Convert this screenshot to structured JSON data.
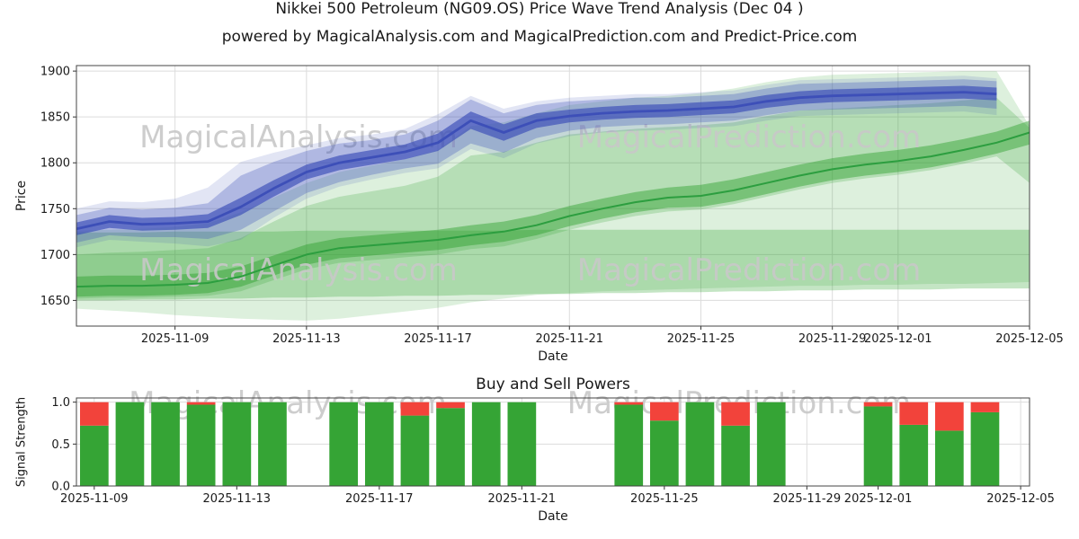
{
  "header": {
    "title_line1": "Nikkei 500 Petroleum (NG09.OS) Price Wave Trend Analysis (Dec 04 )",
    "title_line2": "powered by MagicalAnalysis.com and MagicalPrediction.com and Predict-Price.com"
  },
  "watermarks": {
    "analysis": "MagicalAnalysis.com",
    "prediction": "MagicalPrediction.com",
    "color": "#c8c8c8"
  },
  "chart_data": [
    {
      "type": "area",
      "name": "price-wave-trend",
      "xlabel": "Date",
      "ylabel": "Price",
      "xmin": "2025-11-06",
      "xmax": "2025-12-05",
      "ylim": [
        1622,
        1906
      ],
      "y_ticks": [
        1650,
        1700,
        1750,
        1800,
        1850,
        1900
      ],
      "y_tick_labels": [
        "1650",
        "1700",
        "1750",
        "1800",
        "1850",
        "1900"
      ],
      "x_ticks": [
        "2025-11-09",
        "2025-11-13",
        "2025-11-17",
        "2025-11-21",
        "2025-11-25",
        "2025-11-29",
        "2025-12-01",
        "2025-12-05"
      ],
      "grid": true,
      "legend": "none",
      "dates": [
        "2025-11-06",
        "2025-11-07",
        "2025-11-08",
        "2025-11-09",
        "2025-11-10",
        "2025-11-11",
        "2025-11-12",
        "2025-11-13",
        "2025-11-14",
        "2025-11-15",
        "2025-11-16",
        "2025-11-17",
        "2025-11-18",
        "2025-11-19",
        "2025-11-20",
        "2025-11-21",
        "2025-11-22",
        "2025-11-23",
        "2025-11-24",
        "2025-11-25",
        "2025-11-26",
        "2025-11-27",
        "2025-11-28",
        "2025-11-29",
        "2025-11-30",
        "2025-12-01",
        "2025-12-02",
        "2025-12-03",
        "2025-12-04",
        "2025-12-05"
      ],
      "bands_back": [
        {
          "name": "outer-green-fan",
          "color": "#2ca02c",
          "opacity": 0.16,
          "upper": [
            1726,
            1727,
            1728,
            1730,
            1734,
            1746,
            1762,
            1778,
            1790,
            1797,
            1804,
            1814,
            1840,
            1844,
            1854,
            1863,
            1867,
            1871,
            1873,
            1876,
            1881,
            1888,
            1893,
            1896,
            1897,
            1898,
            1899,
            1900,
            1900,
            1840
          ],
          "lower": [
            1641,
            1639,
            1637,
            1634,
            1632,
            1630,
            1629,
            1628,
            1630,
            1634,
            1638,
            1642,
            1648,
            1652,
            1656,
            1658,
            1660,
            1661,
            1662,
            1663,
            1664,
            1665,
            1666,
            1666,
            1667,
            1667,
            1668,
            1668,
            1669,
            1670
          ]
        },
        {
          "name": "flat-green-band",
          "color": "#2ca02c",
          "opacity": 0.28,
          "upper": [
            1724,
            1724,
            1724,
            1725,
            1725,
            1725,
            1725,
            1726,
            1726,
            1726,
            1726,
            1726,
            1726,
            1726,
            1727,
            1727,
            1727,
            1727,
            1727,
            1727,
            1727,
            1727,
            1727,
            1727,
            1727,
            1727,
            1727,
            1727,
            1727,
            1727
          ],
          "lower": [
            1650,
            1650,
            1651,
            1651,
            1652,
            1652,
            1653,
            1653,
            1654,
            1654,
            1655,
            1655,
            1656,
            1656,
            1657,
            1657,
            1658,
            1658,
            1659,
            1659,
            1660,
            1660,
            1661,
            1661,
            1662,
            1662,
            1662,
            1663,
            1663,
            1663
          ]
        },
        {
          "name": "mid-green-fan",
          "color": "#2ca02c",
          "opacity": 0.22,
          "upper": [
            1700,
            1702,
            1703,
            1705,
            1707,
            1718,
            1736,
            1753,
            1763,
            1769,
            1775,
            1785,
            1808,
            1812,
            1822,
            1831,
            1834,
            1837,
            1839,
            1841,
            1844,
            1851,
            1857,
            1859,
            1861,
            1863,
            1865,
            1868,
            1871,
            1838
          ],
          "lower": [
            1652,
            1653,
            1653,
            1654,
            1655,
            1660,
            1672,
            1684,
            1691,
            1694,
            1697,
            1700,
            1706,
            1709,
            1717,
            1727,
            1735,
            1742,
            1747,
            1749,
            1755,
            1763,
            1771,
            1778,
            1783,
            1787,
            1792,
            1799,
            1807,
            1778
          ]
        },
        {
          "name": "green-trend-band",
          "color": "#2ca02c",
          "opacity": 0.45,
          "upper": [
            1676,
            1677,
            1677,
            1678,
            1680,
            1687,
            1699,
            1711,
            1718,
            1721,
            1724,
            1727,
            1732,
            1736,
            1743,
            1753,
            1761,
            1768,
            1773,
            1776,
            1782,
            1790,
            1798,
            1805,
            1810,
            1814,
            1819,
            1826,
            1834,
            1846
          ],
          "lower": [
            1654,
            1655,
            1655,
            1656,
            1658,
            1665,
            1677,
            1689,
            1696,
            1699,
            1702,
            1705,
            1710,
            1714,
            1721,
            1731,
            1739,
            1746,
            1751,
            1752,
            1758,
            1766,
            1774,
            1781,
            1786,
            1790,
            1795,
            1802,
            1810,
            1820
          ]
        }
      ],
      "bands_front": [
        {
          "name": "blue-outest-band",
          "color": "#3d4fb8",
          "opacity": 0.15,
          "upper": [
            1750,
            1758,
            1757,
            1761,
            1773,
            1801,
            1811,
            1819,
            1827,
            1831,
            1837,
            1853,
            1873,
            1859,
            1867,
            1871,
            1873,
            1875,
            1875,
            1877,
            1879,
            1885,
            1890,
            1891,
            1892,
            1893,
            1894,
            1895,
            1892,
            null
          ],
          "lower": [
            1708,
            1716,
            1714,
            1712,
            1709,
            1716,
            1740,
            1761,
            1774,
            1782,
            1789,
            1794,
            1815,
            1805,
            1821,
            1829,
            1833,
            1835,
            1836,
            1838,
            1840,
            1846,
            1851,
            1852,
            1853,
            1854,
            1855,
            1856,
            1852,
            null
          ]
        },
        {
          "name": "blue-outer-band",
          "color": "#3d4fb8",
          "opacity": 0.3,
          "upper": [
            1743,
            1751,
            1749,
            1751,
            1756,
            1786,
            1801,
            1813,
            1821,
            1825,
            1831,
            1846,
            1869,
            1854,
            1863,
            1867,
            1869,
            1871,
            1871,
            1873,
            1875,
            1881,
            1886,
            1887,
            1888,
            1889,
            1890,
            1891,
            1889,
            null
          ],
          "lower": [
            1713,
            1721,
            1719,
            1719,
            1717,
            1727,
            1747,
            1767,
            1779,
            1787,
            1794,
            1799,
            1821,
            1811,
            1827,
            1835,
            1839,
            1841,
            1842,
            1844,
            1846,
            1852,
            1857,
            1858,
            1859,
            1860,
            1861,
            1862,
            1859,
            null
          ]
        },
        {
          "name": "blue-inner-band",
          "color": "#3d4fb8",
          "opacity": 0.68,
          "upper": [
            1735,
            1743,
            1740,
            1741,
            1744,
            1762,
            1781,
            1798,
            1808,
            1814,
            1820,
            1832,
            1856,
            1842,
            1854,
            1858,
            1861,
            1863,
            1864,
            1866,
            1868,
            1874,
            1878,
            1880,
            1881,
            1882,
            1883,
            1884,
            1882,
            null
          ],
          "lower": [
            1721,
            1729,
            1726,
            1727,
            1729,
            1743,
            1763,
            1782,
            1792,
            1798,
            1804,
            1813,
            1837,
            1824,
            1838,
            1844,
            1847,
            1849,
            1850,
            1852,
            1854,
            1860,
            1864,
            1866,
            1867,
            1868,
            1869,
            1870,
            1868,
            null
          ]
        }
      ],
      "series": [
        {
          "name": "trend-line",
          "color": "#2c9e3f",
          "width": 2,
          "values": [
            1665,
            1666,
            1666,
            1667,
            1669,
            1676,
            1688,
            1700,
            1707,
            1710,
            1713,
            1716,
            1721,
            1725,
            1732,
            1742,
            1750,
            1757,
            1762,
            1764,
            1770,
            1778,
            1786,
            1793,
            1798,
            1802,
            1807,
            1814,
            1822,
            1833
          ]
        },
        {
          "name": "price-line",
          "color": "#3d4fb8",
          "width": 2.8,
          "values": [
            1728,
            1736,
            1733,
            1734,
            1736,
            1752,
            1772,
            1790,
            1800,
            1806,
            1812,
            1822,
            1846,
            1833,
            1846,
            1851,
            1854,
            1856,
            1857,
            1859,
            1861,
            1867,
            1871,
            1873,
            1874,
            1875,
            1876,
            1877,
            1875,
            null
          ]
        }
      ]
    },
    {
      "type": "bar",
      "name": "buy-sell-powers",
      "title": "Buy and Sell Powers",
      "xlabel": "Date",
      "ylabel": "Signal Strength",
      "xmin": "2025-11-08T12:00:00",
      "xmax": "2025-12-05T06:00:00",
      "ylim": [
        0,
        1.05
      ],
      "y_ticks": [
        0,
        0.5,
        1
      ],
      "y_tick_labels": [
        "0.0",
        "0.5",
        "1.0"
      ],
      "x_ticks": [
        "2025-11-09",
        "2025-11-13",
        "2025-11-17",
        "2025-11-21",
        "2025-11-25",
        "2025-11-29",
        "2025-12-01",
        "2025-12-05"
      ],
      "grid": true,
      "bar_width_days": 0.8,
      "colors": {
        "buy": "#35a435",
        "sell": "#f2433b"
      },
      "bars": [
        {
          "date": "2025-11-09",
          "buy": 0.72,
          "sell": 0.28
        },
        {
          "date": "2025-11-10",
          "buy": 1.0,
          "sell": 0.0
        },
        {
          "date": "2025-11-11",
          "buy": 1.0,
          "sell": 0.0
        },
        {
          "date": "2025-11-12",
          "buy": 0.97,
          "sell": 0.03
        },
        {
          "date": "2025-11-13",
          "buy": 1.0,
          "sell": 0.0
        },
        {
          "date": "2025-11-14",
          "buy": 1.0,
          "sell": 0.0
        },
        {
          "date": "2025-11-16",
          "buy": 1.0,
          "sell": 0.0
        },
        {
          "date": "2025-11-17",
          "buy": 1.0,
          "sell": 0.0
        },
        {
          "date": "2025-11-18",
          "buy": 0.84,
          "sell": 0.16
        },
        {
          "date": "2025-11-19",
          "buy": 0.93,
          "sell": 0.07
        },
        {
          "date": "2025-11-20",
          "buy": 1.0,
          "sell": 0.0
        },
        {
          "date": "2025-11-21",
          "buy": 1.0,
          "sell": 0.0
        },
        {
          "date": "2025-11-24",
          "buy": 0.97,
          "sell": 0.03
        },
        {
          "date": "2025-11-25",
          "buy": 0.78,
          "sell": 0.22
        },
        {
          "date": "2025-11-26",
          "buy": 1.0,
          "sell": 0.0
        },
        {
          "date": "2025-11-27",
          "buy": 0.72,
          "sell": 0.28
        },
        {
          "date": "2025-11-28",
          "buy": 1.0,
          "sell": 0.0
        },
        {
          "date": "2025-12-01",
          "buy": 0.95,
          "sell": 0.05
        },
        {
          "date": "2025-12-02",
          "buy": 0.73,
          "sell": 0.27
        },
        {
          "date": "2025-12-03",
          "buy": 0.66,
          "sell": 0.34
        },
        {
          "date": "2025-12-04",
          "buy": 0.88,
          "sell": 0.12
        }
      ]
    }
  ]
}
